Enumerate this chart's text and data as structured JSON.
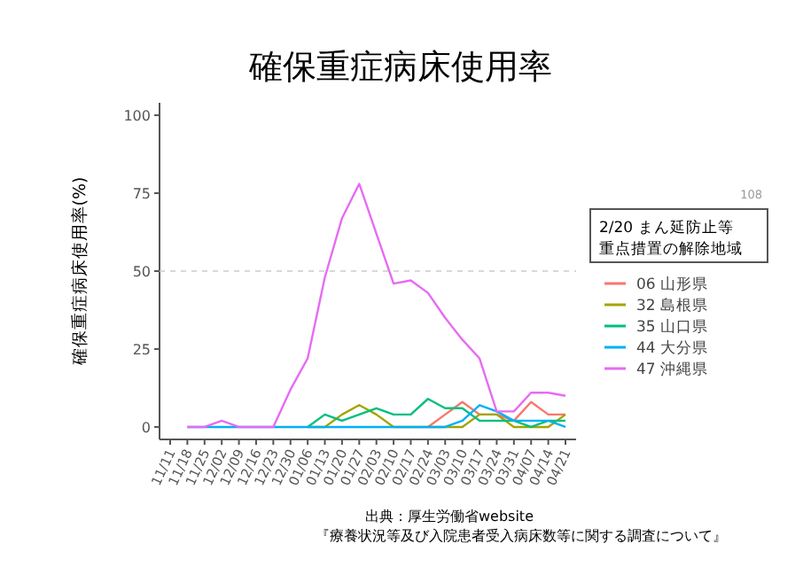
{
  "chart_data": {
    "type": "line",
    "title": "確保重症病床使用率",
    "ylabel": "確保重症病床使用率(%)",
    "legend_title": "2/20 まん延防止等重点措置の解除地域",
    "legend": "right",
    "categories": [
      "11/11",
      "11/18",
      "11/25",
      "12/02",
      "12/09",
      "12/16",
      "12/23",
      "12/30",
      "01/06",
      "01/13",
      "01/20",
      "01/27",
      "02/03",
      "02/10",
      "02/17",
      "02/24",
      "03/03",
      "03/10",
      "03/17",
      "03/24",
      "03/31",
      "04/07",
      "04/14",
      "04/21"
    ],
    "series": [
      {
        "name": "06 山形県",
        "color": "#f8766d",
        "values": [
          null,
          null,
          null,
          null,
          null,
          null,
          null,
          null,
          null,
          null,
          null,
          null,
          null,
          null,
          null,
          0,
          4,
          8,
          4,
          4,
          2,
          8,
          4,
          4
        ]
      },
      {
        "name": "32 島根県",
        "color": "#a3a500",
        "values": [
          null,
          null,
          null,
          null,
          null,
          null,
          null,
          null,
          0,
          0,
          4,
          7,
          4,
          0,
          0,
          0,
          0,
          0,
          4,
          4,
          0,
          0,
          0,
          4
        ]
      },
      {
        "name": "35 山口県",
        "color": "#00bf7d",
        "values": [
          null,
          null,
          null,
          null,
          null,
          null,
          null,
          null,
          0,
          4,
          2,
          4,
          6,
          4,
          4,
          9,
          6,
          6,
          2,
          2,
          2,
          0,
          2,
          2
        ]
      },
      {
        "name": "44 大分県",
        "color": "#00b0f6",
        "values": [
          null,
          0,
          0,
          0,
          0,
          0,
          0,
          0,
          0,
          0,
          0,
          0,
          0,
          0,
          0,
          0,
          0,
          2,
          7,
          5,
          2,
          2,
          2,
          0
        ]
      },
      {
        "name": "47 沖縄県",
        "color": "#e76bf3",
        "values": [
          null,
          0,
          0,
          2,
          0,
          0,
          0,
          12,
          22,
          48,
          67,
          78,
          62,
          46,
          47,
          43,
          35,
          28,
          22,
          5,
          5,
          11,
          11,
          10
        ]
      }
    ],
    "ylim": [
      -4,
      104
    ],
    "yticks": [
      0,
      25,
      50,
      75,
      100
    ],
    "grid": false,
    "ref_lines": [
      {
        "axis": "y",
        "value": 50,
        "color": "#cccccc",
        "line_style": "dashed"
      }
    ],
    "annotations": [
      "108",
      "出典：厚生労働省website",
      "『療養状況等及び入院患者受入病床数等に関する調査について』"
    ]
  }
}
